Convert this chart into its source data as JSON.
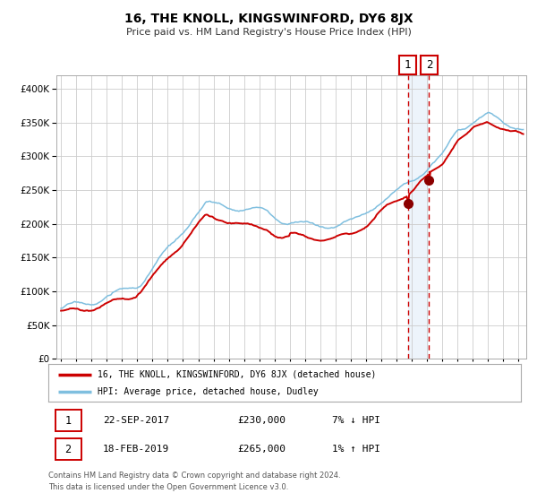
{
  "title": "16, THE KNOLL, KINGSWINFORD, DY6 8JX",
  "subtitle": "Price paid vs. HM Land Registry's House Price Index (HPI)",
  "legend_line1": "16, THE KNOLL, KINGSWINFORD, DY6 8JX (detached house)",
  "legend_line2": "HPI: Average price, detached house, Dudley",
  "transaction1_date": "22-SEP-2017",
  "transaction1_price": "£230,000",
  "transaction1_hpi": "7% ↓ HPI",
  "transaction1_year": 2017.73,
  "transaction1_value": 230000,
  "transaction2_date": "18-FEB-2019",
  "transaction2_price": "£265,000",
  "transaction2_hpi": "1% ↑ HPI",
  "transaction2_year": 2019.13,
  "transaction2_value": 265000,
  "footer_line1": "Contains HM Land Registry data © Crown copyright and database right 2024.",
  "footer_line2": "This data is licensed under the Open Government Licence v3.0.",
  "hpi_color": "#7fbfdf",
  "price_color": "#cc0000",
  "marker_color": "#8b0000",
  "vline_color": "#cc0000",
  "shade_color": "#cce0f5",
  "grid_color": "#cccccc",
  "background_color": "#ffffff",
  "ylim": [
    0,
    420000
  ],
  "xlim_start": 1994.7,
  "xlim_end": 2025.5,
  "yticks": [
    0,
    50000,
    100000,
    150000,
    200000,
    250000,
    300000,
    350000,
    400000
  ]
}
